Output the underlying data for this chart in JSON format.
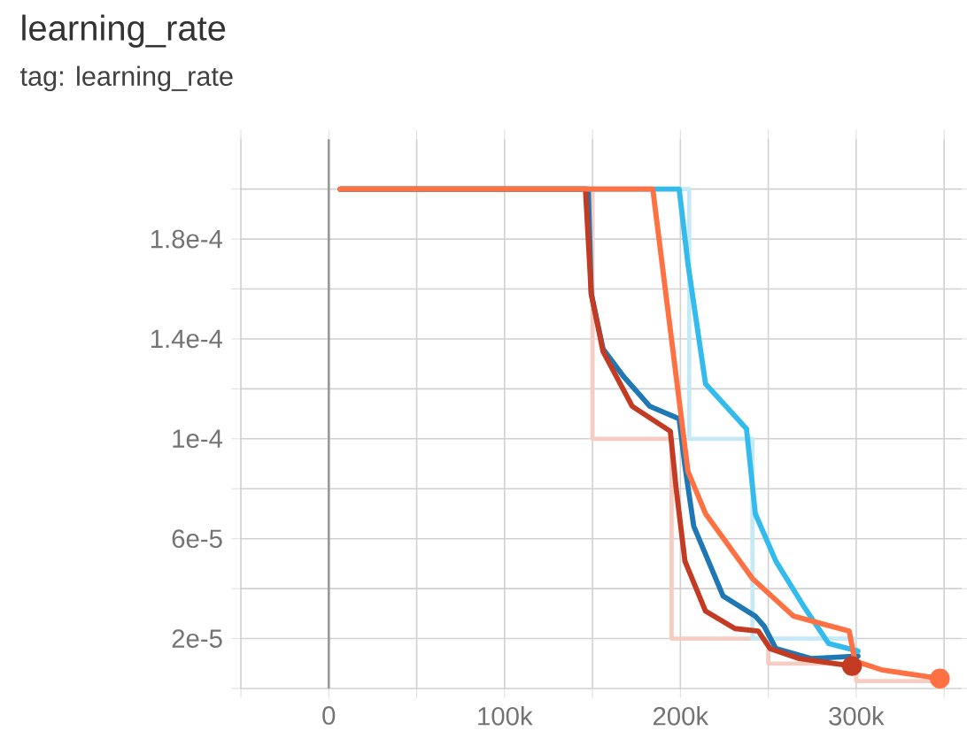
{
  "chart_data": {
    "type": "line",
    "title": "learning_rate",
    "subtitle": "tag: learning_rate",
    "xlim": [
      -50000,
      360000
    ],
    "ylim": [
      0,
      0.00022
    ],
    "xticks": [
      {
        "value": -50000,
        "label": null
      },
      0,
      {
        "value": 50000,
        "label": null
      },
      {
        "value": 100000,
        "label": "100k"
      },
      {
        "value": 150000,
        "label": null
      },
      {
        "value": 200000,
        "label": "200k"
      },
      {
        "value": 250000,
        "label": null
      },
      {
        "value": 300000,
        "label": "300k"
      },
      {
        "value": 350000,
        "label": null
      }
    ],
    "yticks": [
      {
        "value": 0,
        "label": null
      },
      {
        "value": 2e-05,
        "label": "2e-5"
      },
      {
        "value": 4e-05,
        "label": null
      },
      {
        "value": 6e-05,
        "label": "6e-5"
      },
      {
        "value": 8e-05,
        "label": null
      },
      {
        "value": 0.0001,
        "label": "1e-4"
      },
      {
        "value": 0.00012,
        "label": null
      },
      {
        "value": 0.00014,
        "label": "1.4e-4"
      },
      {
        "value": 0.00016,
        "label": null
      },
      {
        "value": 0.00018,
        "label": "1.8e-4"
      },
      {
        "value": 0.0002,
        "label": null
      }
    ],
    "grid": true,
    "series": [
      {
        "type": "step",
        "color": "#f6cdc2",
        "x": [
          147000,
          150000,
          195000,
          250000,
          300000,
          350000
        ],
        "values": [
          0.0002,
          0.0001,
          2e-05,
          1e-05,
          3e-06,
          3e-06
        ]
      },
      {
        "type": "step",
        "color": "#c6e9f7",
        "x": [
          200000,
          205000,
          241000,
          300000
        ],
        "values": [
          0.0002,
          0.0001,
          2e-05,
          2e-05
        ]
      },
      {
        "color": "#1f77b4",
        "x": [
          6600,
          147600,
          149300,
          156000,
          167600,
          182600,
          199300,
          202600,
          207600,
          224300,
          242600,
          247600,
          254300,
          274300,
          301000
        ],
        "values": [
          0.0002,
          0.0002,
          0.000158,
          0.000136,
          0.000125,
          0.000113,
          0.000108,
          8.9e-05,
          6.5e-05,
          3.7e-05,
          2.9e-05,
          2.5e-05,
          1.6e-05,
          1.2e-05,
          1.3e-05
        ]
      },
      {
        "color": "#33bbee",
        "x": [
          6600,
          199300,
          204300,
          214300,
          237600,
          242600,
          254300,
          271000,
          284300,
          301000
        ],
        "values": [
          0.0002,
          0.0002,
          0.00017,
          0.000122,
          0.000104,
          7e-05,
          5.1e-05,
          3.2e-05,
          1.8e-05,
          1.5e-05
        ]
      },
      {
        "color": "#c23b22",
        "x": [
          6600,
          146000,
          149300,
          156000,
          172600,
          194300,
          197600,
          202600,
          214300,
          231000,
          244300,
          251000,
          267600,
          297600
        ],
        "values": [
          0.0002,
          0.0002,
          0.000158,
          0.000135,
          0.000113,
          0.000103,
          8e-05,
          5.1e-05,
          3.1e-05,
          2.4e-05,
          2.3e-05,
          1.6e-05,
          1.2e-05,
          9e-06
        ]
      },
      {
        "color": "#ff7043",
        "x": [
          6600,
          184300,
          204300,
          214300,
          241000,
          264300,
          296000,
          299300,
          314300,
          347600
        ],
        "values": [
          0.0002,
          0.0002,
          8.7e-05,
          7e-05,
          4.4e-05,
          2.9e-05,
          2.3e-05,
          1.1e-05,
          7.5e-06,
          4e-06
        ]
      },
      {
        "type": "scatter",
        "color": "#c23b22",
        "x": [
          297600
        ],
        "values": [
          9e-06
        ]
      },
      {
        "type": "scatter",
        "color": "#ff7043",
        "x": [
          347600
        ],
        "values": [
          4e-06
        ]
      }
    ]
  }
}
